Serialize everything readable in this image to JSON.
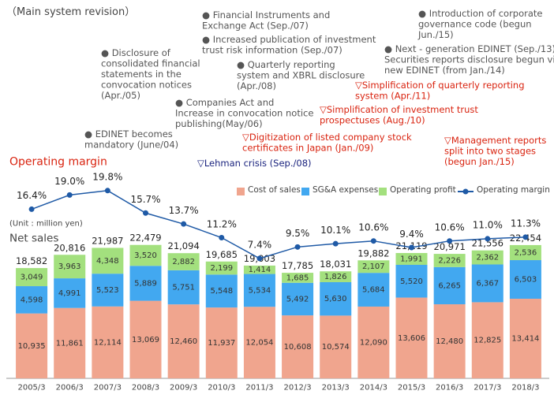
{
  "chart_data": {
    "type": "bar",
    "stacked": true,
    "title": "（Main system revision）",
    "line_title": "Operating margin",
    "unit_label": "(Unit : million yen)",
    "bar_title": "Net sales",
    "categories": [
      "2005/3",
      "2006/3",
      "2007/3",
      "2008/3",
      "2009/3",
      "2010/3",
      "2011/3",
      "2012/3",
      "2013/3",
      "2014/3",
      "2015/3",
      "2016/3",
      "2017/3",
      "2018/3"
    ],
    "ylim": [
      0,
      33200
    ],
    "y2lim": [
      -14.5,
      21.5
    ],
    "series": [
      {
        "name": "Cost of sales",
        "type": "bar",
        "color": "#f0a58e",
        "values": [
          10935,
          11861,
          12114,
          13069,
          12460,
          11937,
          12054,
          10608,
          10574,
          12090,
          13606,
          12480,
          12825,
          13414
        ],
        "value_labels": [
          "10,935",
          "11,861",
          "12,114",
          "13,069",
          "12,460",
          "11,937",
          "12,054",
          "10,608",
          "10,574",
          "12,090",
          "13,606",
          "12,480",
          "12,825",
          "13,414"
        ]
      },
      {
        "name": "SG&A expenses",
        "type": "bar",
        "color": "#42a8f0",
        "values": [
          4598,
          4991,
          5523,
          5889,
          5751,
          5548,
          5534,
          5492,
          5630,
          5684,
          5520,
          6265,
          6367,
          6503
        ],
        "value_labels": [
          "4,598",
          "4,991",
          "5,523",
          "5,889",
          "5,751",
          "5,548",
          "5,534",
          "5,492",
          "5,630",
          "5,684",
          "5,520",
          "6,265",
          "6,367",
          "6,503"
        ]
      },
      {
        "name": "Operating profit",
        "type": "bar",
        "color": "#a3e07e",
        "values": [
          3049,
          3963,
          4348,
          3520,
          2882,
          2199,
          1414,
          1685,
          1826,
          2107,
          1991,
          2226,
          2362,
          2536
        ],
        "value_labels": [
          "3,049",
          "3,963",
          "4,348",
          "3,520",
          "2,882",
          "2,199",
          "1,414",
          "1,685",
          "1,826",
          "2,107",
          "1,991",
          "2,226",
          "2,362",
          "2,536"
        ]
      },
      {
        "name": "Operating margin",
        "type": "line",
        "axis": "y2",
        "color": "#1f5aa6",
        "values": [
          16.4,
          19.0,
          19.8,
          15.7,
          13.7,
          11.2,
          7.4,
          9.5,
          10.1,
          10.6,
          9.4,
          10.6,
          11.0,
          11.3
        ],
        "value_labels": [
          "16.4%",
          "19.0%",
          "19.8%",
          "15.7%",
          "13.7%",
          "11.2%",
          "7.4%",
          "9.5%",
          "10.1%",
          "10.6%",
          "9.4%",
          "10.6%",
          "11.0%",
          "11.3%"
        ]
      }
    ],
    "totals": [
      18582,
      20816,
      21987,
      22479,
      21094,
      19685,
      19003,
      17785,
      18031,
      19882,
      21119,
      20971,
      21556,
      22454
    ],
    "total_labels": [
      "18,582",
      "20,816",
      "21,987",
      "22,479",
      "21,094",
      "19,685",
      "19,003",
      "17,785",
      "18,031",
      "19,882",
      "21,119",
      "20,971",
      "21,556",
      "22,454"
    ],
    "annotations": [
      {
        "color": "#555555",
        "lines": [
          "● Financial Instruments and",
          "Exchange Act (Sep./07)"
        ]
      },
      {
        "color": "#555555",
        "lines": [
          "● Increased publication of investment",
          "trust risk information (Sep./07)"
        ]
      },
      {
        "color": "#555555",
        "lines": [
          "● Introduction of corporate",
          "governance code (begun",
          "Jun./15)"
        ]
      },
      {
        "color": "#555555",
        "lines": [
          "● Next - generation EDINET (Sep./13)",
          "Securities reports disclosure begun via",
          "new EDINET (from Jan./14)"
        ]
      },
      {
        "color": "#555555",
        "lines": [
          "● Disclosure of",
          "consolidated financial",
          "statements in the",
          "convocation notices",
          "(Apr./05)"
        ]
      },
      {
        "color": "#555555",
        "lines": [
          "● Quarterly reporting",
          "system and XBRL disclosure",
          "(Apr./08)"
        ]
      },
      {
        "color": "#d9230f",
        "lines": [
          "▽Simplification of quarterly reporting",
          "system (Apr./11)"
        ]
      },
      {
        "color": "#555555",
        "lines": [
          "● Companies Act and",
          "Increase in convocation notice",
          "publishing(May/06)"
        ]
      },
      {
        "color": "#d9230f",
        "lines": [
          "▽Simplification of investment trust",
          "prospectuses (Aug./10)"
        ]
      },
      {
        "color": "#555555",
        "lines": [
          "● EDINET becomes",
          "mandatory (June/04)"
        ]
      },
      {
        "color": "#d9230f",
        "lines": [
          "▽Digitization of listed company stock",
          "certificates in Japan (Jan./09)"
        ]
      },
      {
        "color": "#d9230f",
        "lines": [
          "▽Management reports",
          "split into two stages",
          "(begun Jan./15)"
        ]
      },
      {
        "color": "#1a237e",
        "lines": [
          "▽Lehman crisis (Sep./08)"
        ]
      }
    ]
  }
}
